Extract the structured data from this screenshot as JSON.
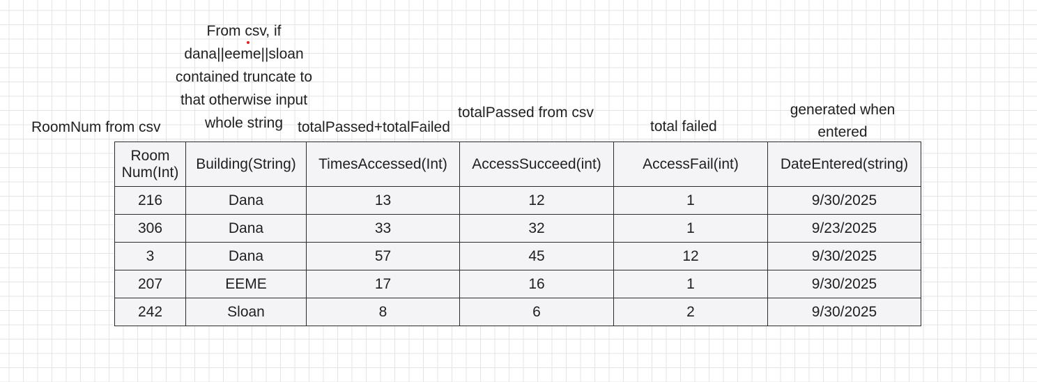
{
  "annotations": {
    "roomnum": [
      "RoomNum from csv"
    ],
    "building": [
      "From csv, if",
      "dana||eeme||sloan",
      "contained truncate to",
      "that otherwise input",
      "whole string"
    ],
    "times_accessed": [
      "totalPassed+totalFailed"
    ],
    "access_succeed": [
      "totalPassed from csv"
    ],
    "access_fail": [
      "total failed"
    ],
    "date_entered": [
      "generated when",
      "entered"
    ]
  },
  "table": {
    "headers": [
      [
        "Room",
        "Num(Int)"
      ],
      [
        "Building(String)"
      ],
      [
        "TimesAccessed(Int)"
      ],
      [
        "AccessSucceed(int)"
      ],
      [
        "AccessFail(int)"
      ],
      [
        "DateEntered(string)"
      ]
    ],
    "rows": [
      [
        "216",
        "Dana",
        "13",
        "12",
        "1",
        "9/30/2025"
      ],
      [
        "306",
        "Dana",
        "33",
        "32",
        "1",
        "9/23/2025"
      ],
      [
        "3",
        "Dana",
        "57",
        "45",
        "12",
        "9/30/2025"
      ],
      [
        "207",
        "EEME",
        "17",
        "16",
        "1",
        "9/30/2025"
      ],
      [
        "242",
        "Sloan",
        "8",
        "6",
        "2",
        "9/30/2025"
      ]
    ]
  },
  "colors": {
    "grid_line": "#e4e4e4",
    "table_background": "#f4f4f6",
    "border": "#2a2a2a",
    "marker_dot": "#e02020"
  }
}
